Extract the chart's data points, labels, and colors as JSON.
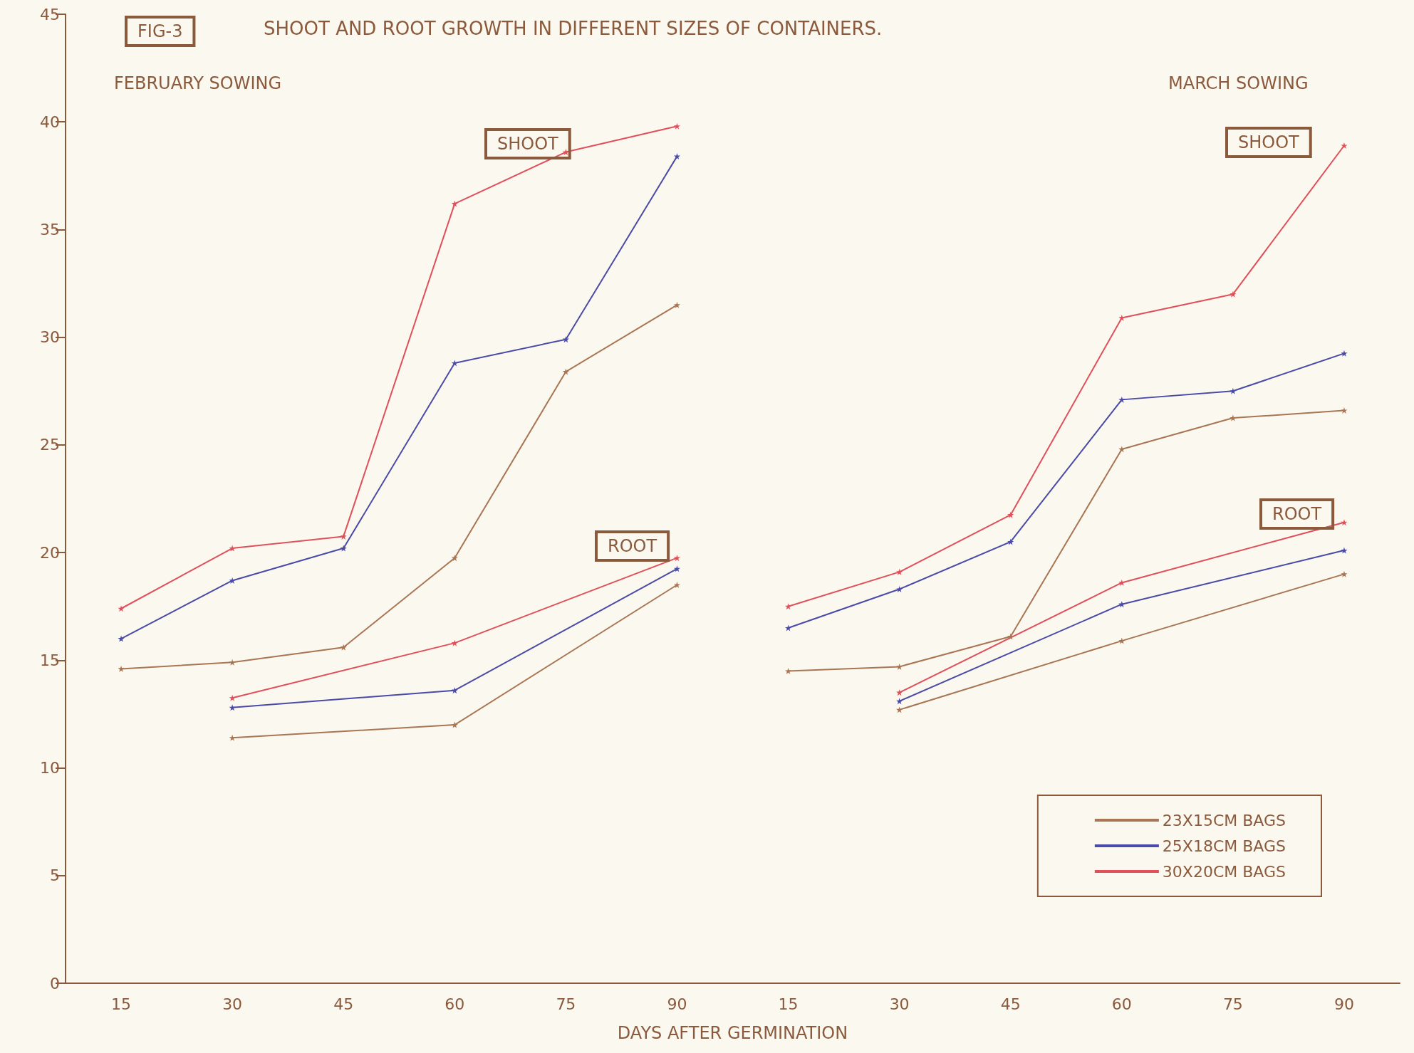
{
  "chart_data": {
    "type": "line",
    "title": "SHOOT AND ROOT GROWTH IN DIFFERENT SIZES OF CONTAINERS.",
    "xlabel": "DAYS AFTER GERMINATION",
    "annotations": [
      "FIG-3",
      "FEBRUARY SOWING",
      "MARCH SOWING",
      "SHOOT",
      "ROOT",
      "SHOOT",
      "ROOT"
    ],
    "categories": [
      "15",
      "30",
      "45",
      "60",
      "75",
      "90",
      "15",
      "30",
      "45",
      "60",
      "75",
      "90"
    ],
    "ylim": [
      0,
      45
    ],
    "yticks": [
      0,
      5,
      10,
      15,
      20,
      25,
      30,
      35,
      40,
      45
    ],
    "grid": false,
    "legend": "bottom right",
    "marker": "star",
    "line_style": "solid",
    "series": [
      {
        "name": "23X15CM BAGS",
        "color": "#a87654",
        "values": [
          14.6,
          14.9,
          15.6,
          19.75,
          28.4,
          31.5,
          null,
          null,
          null,
          null,
          null,
          null
        ]
      },
      {
        "name": "25X18CM BAGS",
        "color": "#4a4aa8",
        "values": [
          16.0,
          18.7,
          20.2,
          28.8,
          29.9,
          38.4,
          null,
          null,
          null,
          null,
          null,
          null
        ]
      },
      {
        "name": "30X20CM BAGS",
        "color": "#e0505a",
        "values": [
          17.4,
          20.2,
          20.75,
          36.2,
          38.6,
          39.8,
          null,
          null,
          null,
          null,
          null,
          null
        ]
      },
      {
        "color": "#a87654",
        "values": [
          null,
          11.4,
          null,
          12.0,
          null,
          18.5,
          null,
          null,
          null,
          null,
          null,
          null
        ]
      },
      {
        "color": "#4a4aa8",
        "values": [
          null,
          12.8,
          null,
          13.6,
          null,
          19.25,
          null,
          null,
          null,
          null,
          null,
          null
        ]
      },
      {
        "color": "#e0505a",
        "values": [
          null,
          13.25,
          null,
          15.8,
          null,
          19.75,
          null,
          null,
          null,
          null,
          null,
          null
        ]
      },
      {
        "color": "#a87654",
        "values": [
          null,
          null,
          null,
          null,
          null,
          null,
          14.5,
          14.7,
          16.1,
          24.8,
          26.25,
          26.6
        ]
      },
      {
        "color": "#4a4aa8",
        "values": [
          null,
          null,
          null,
          null,
          null,
          null,
          16.5,
          18.3,
          20.5,
          27.1,
          27.5,
          29.25
        ]
      },
      {
        "color": "#e0505a",
        "values": [
          null,
          null,
          null,
          null,
          null,
          null,
          17.5,
          19.1,
          21.75,
          30.9,
          32.0,
          38.9
        ]
      },
      {
        "color": "#a87654",
        "values": [
          null,
          null,
          null,
          null,
          null,
          null,
          null,
          12.7,
          null,
          15.9,
          null,
          19.0
        ]
      },
      {
        "color": "#4a4aa8",
        "values": [
          null,
          null,
          null,
          null,
          null,
          null,
          null,
          13.1,
          null,
          17.6,
          null,
          20.1
        ]
      },
      {
        "color": "#e0505a",
        "values": [
          null,
          null,
          null,
          null,
          null,
          null,
          null,
          13.5,
          null,
          18.6,
          null,
          21.4
        ]
      }
    ]
  }
}
